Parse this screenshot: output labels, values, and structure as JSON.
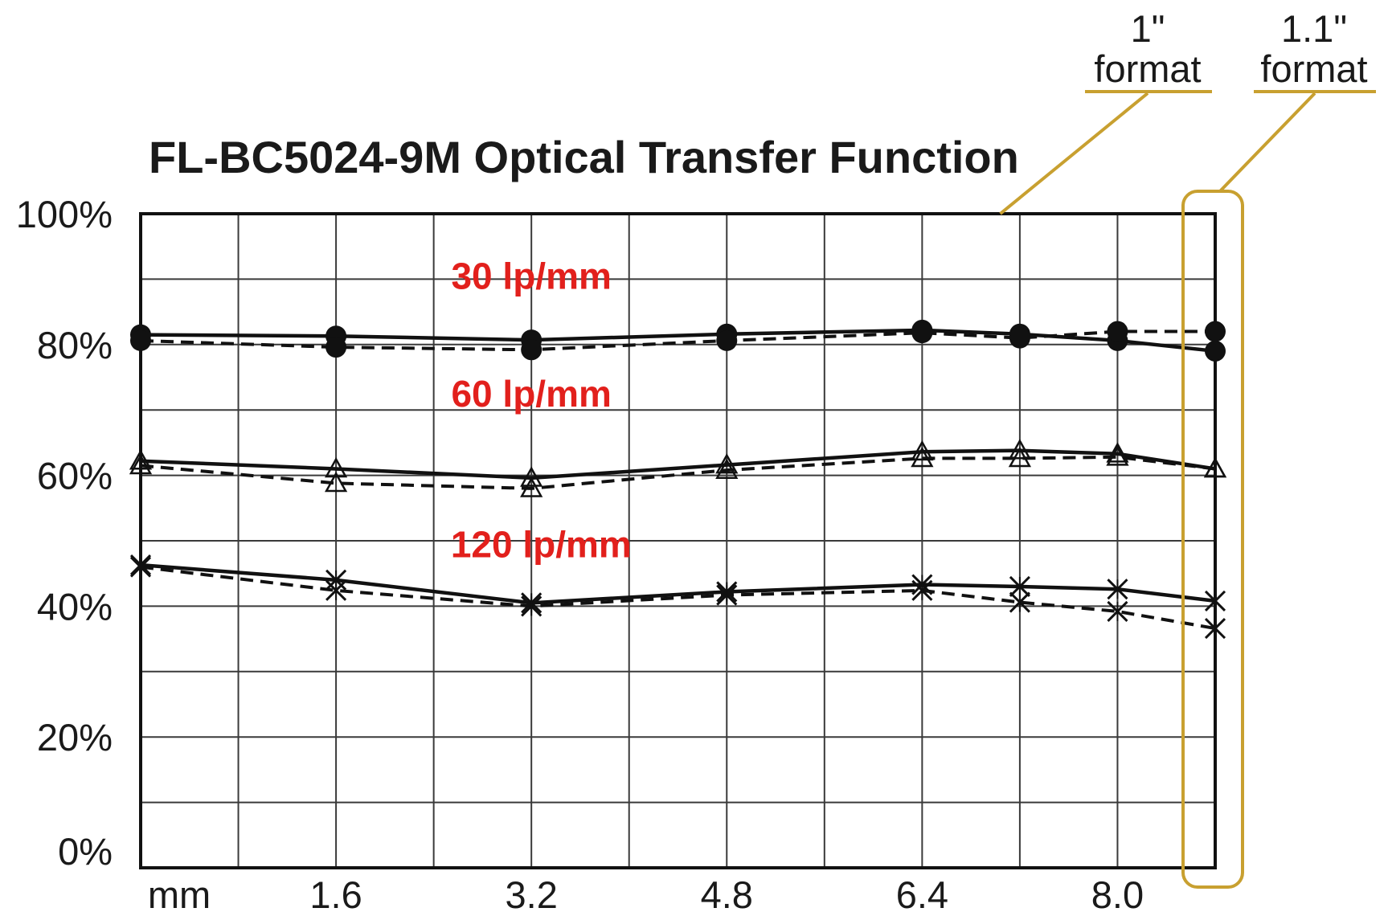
{
  "colors": {
    "label_red": "#e2201c",
    "format_gold": "#c8a030",
    "line": "#111111",
    "grid": "#3a3a3a"
  },
  "format_marks": [
    {
      "line1": "1\"",
      "line2": "format",
      "x": 8.8
    },
    {
      "line1": "1.1\"",
      "line2": "format",
      "x": 9.9
    }
  ],
  "chart_data": {
    "type": "line",
    "title": "FL-BC5024-9M Optical Transfer Function",
    "xlabel": "",
    "ylabel": "",
    "xlim": [
      0,
      11
    ],
    "ylim": [
      0,
      100
    ],
    "x_first_tick_label": "mm",
    "x_ticks": [
      2,
      4,
      6,
      8,
      10
    ],
    "x_tick_labels": [
      "1.6",
      "3.2",
      "4.8",
      "6.4",
      "8.0"
    ],
    "y_ticks": [
      0,
      20,
      40,
      60,
      80,
      100
    ],
    "y_tick_labels": [
      "0%",
      "20%",
      "40%",
      "60%",
      "80%",
      "100%"
    ],
    "grid": true,
    "x": [
      0,
      2,
      4,
      6,
      8,
      9,
      10,
      11
    ],
    "series_labels": [
      {
        "text": "30 lp/mm",
        "x": 4.0,
        "y": 88.5
      },
      {
        "text": "60 lp/mm",
        "x": 4.0,
        "y": 70.5
      },
      {
        "text": "120 lp/mm",
        "x": 4.1,
        "y": 47.5
      }
    ],
    "series": [
      {
        "group": "30 lp/mm",
        "style": "solid",
        "marker": "circle",
        "values": [
          81.5,
          81.3,
          80.7,
          81.6,
          82.2,
          81.6,
          80.6,
          79.0
        ]
      },
      {
        "group": "30 lp/mm",
        "style": "dashed",
        "marker": "circle",
        "values": [
          80.6,
          79.6,
          79.2,
          80.6,
          81.8,
          81.0,
          82.0,
          82.0
        ]
      },
      {
        "group": "60 lp/mm",
        "style": "solid",
        "marker": "triangle",
        "values": [
          62.2,
          61.0,
          59.6,
          61.6,
          63.6,
          63.8,
          63.3,
          61.0
        ]
      },
      {
        "group": "60 lp/mm",
        "style": "dashed",
        "marker": "triangle",
        "values": [
          61.5,
          58.8,
          58.0,
          60.8,
          62.6,
          62.6,
          62.8,
          61.0
        ]
      },
      {
        "group": "120 lp/mm",
        "style": "solid",
        "marker": "cross",
        "values": [
          46.3,
          44.0,
          40.5,
          42.2,
          43.3,
          43.0,
          42.6,
          40.8
        ]
      },
      {
        "group": "120 lp/mm",
        "style": "dashed",
        "marker": "cross",
        "values": [
          46.0,
          42.4,
          40.0,
          41.7,
          42.4,
          40.6,
          39.2,
          36.6
        ]
      }
    ]
  }
}
